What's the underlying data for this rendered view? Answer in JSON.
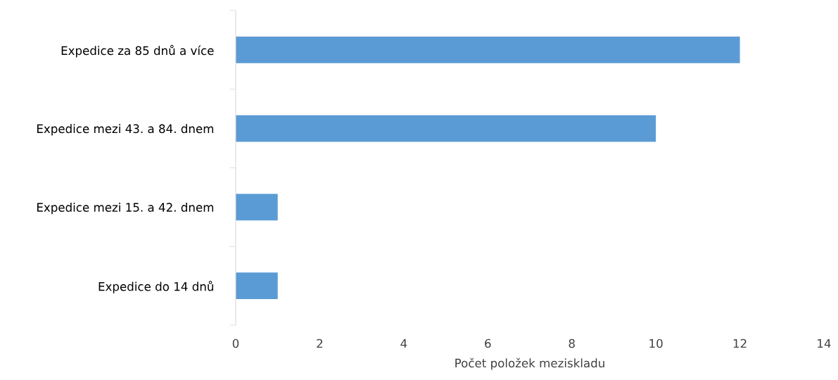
{
  "chart_data": {
    "type": "bar",
    "orientation": "horizontal",
    "categories": [
      "Expedice za 85 dnů a více",
      "Expedice mezi 43. a 84. dnem",
      "Expedice mezi 15. a 42. dnem",
      "Expedice do 14 dnů"
    ],
    "values": [
      12,
      10,
      1,
      1
    ],
    "color": "#5b9bd5",
    "xlabel": "Počet položek meziskladu",
    "xlim": [
      0,
      14
    ],
    "xticks": [
      0,
      2,
      4,
      6,
      8,
      10,
      12,
      14
    ],
    "grid": false,
    "legend": false
  }
}
